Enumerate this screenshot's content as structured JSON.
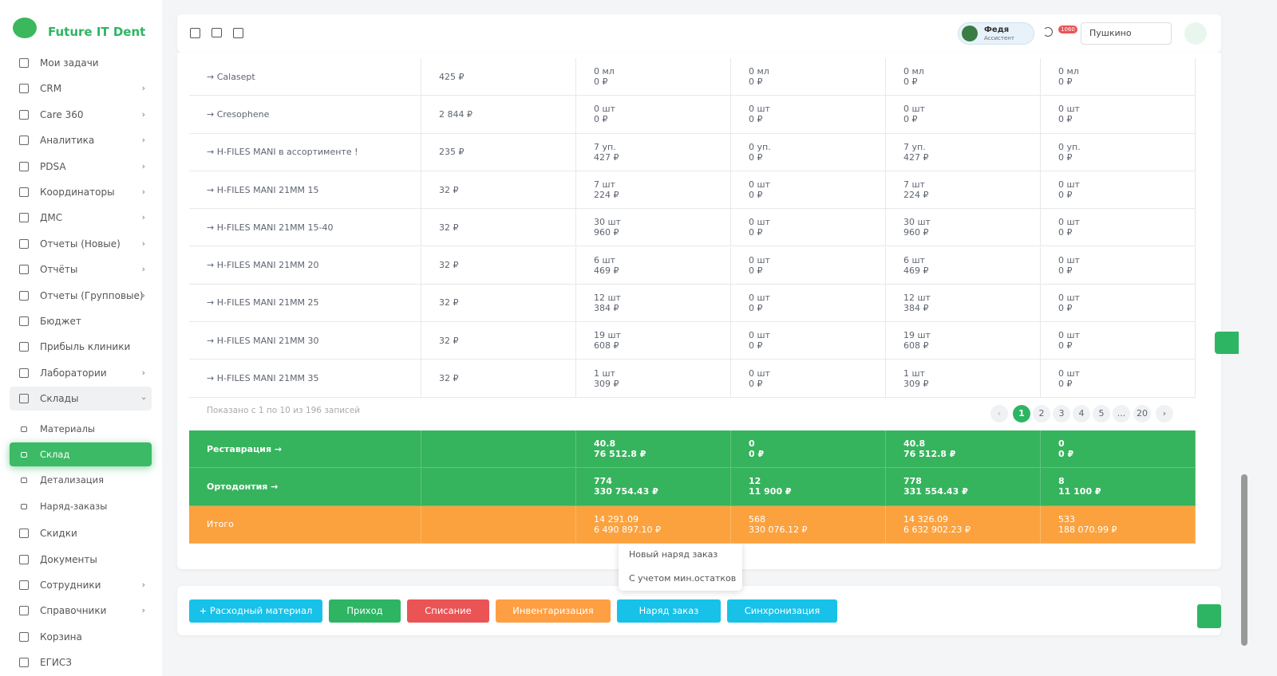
{
  "brand": "Future IT Dent",
  "sidebar": {
    "items": [
      {
        "label": "Мои задачи"
      },
      {
        "label": "CRM",
        "expandable": true
      },
      {
        "label": "Care 360",
        "expandable": true
      },
      {
        "label": "Аналитика",
        "expandable": true
      },
      {
        "label": "PDSA",
        "expandable": true
      },
      {
        "label": "Координаторы",
        "expandable": true
      },
      {
        "label": "ДМС",
        "expandable": true
      },
      {
        "label": "Отчеты (Новые)",
        "expandable": true
      },
      {
        "label": "Отчёты",
        "expandable": true
      },
      {
        "label": "Отчеты (Групповые)",
        "expandable": true
      },
      {
        "label": "Бюджет"
      },
      {
        "label": "Прибыль клиники"
      },
      {
        "label": "Лаборатории",
        "expandable": true
      },
      {
        "label": "Склады",
        "expandable": true,
        "children": [
          {
            "label": "Материалы"
          },
          {
            "label": "Склад",
            "active": true
          },
          {
            "label": "Детализация"
          },
          {
            "label": "Наряд-заказы"
          }
        ]
      },
      {
        "label": "Скидки"
      },
      {
        "label": "Документы"
      },
      {
        "label": "Сотрудники",
        "expandable": true
      },
      {
        "label": "Справочники",
        "expandable": true
      },
      {
        "label": "Корзина"
      },
      {
        "label": "ЕГИСЗ"
      }
    ]
  },
  "header": {
    "assistant_name": "Федя",
    "assistant_role": "Ассистент",
    "notifications": "1060",
    "location": "Пушкино"
  },
  "table": {
    "rows": [
      {
        "name": "→ Calasept",
        "price": "425 ₽",
        "cells": [
          [
            "0 мл",
            "0 ₽"
          ],
          [
            "0 мл",
            "0 ₽"
          ],
          [
            "0 мл",
            "0 ₽"
          ],
          [
            "0 мл",
            "0 ₽"
          ]
        ]
      },
      {
        "name": "→ Cresophene",
        "price": "2 844 ₽",
        "cells": [
          [
            "0 шт",
            "0 ₽"
          ],
          [
            "0 шт",
            "0 ₽"
          ],
          [
            "0 шт",
            "0 ₽"
          ],
          [
            "0 шт",
            "0 ₽"
          ]
        ]
      },
      {
        "name": "→ H-FILES MANI в ассортименте !",
        "price": "235 ₽",
        "cells": [
          [
            "7 уп.",
            "427 ₽"
          ],
          [
            "0 уп.",
            "0 ₽"
          ],
          [
            "7 уп.",
            "427 ₽"
          ],
          [
            "0 уп.",
            "0 ₽"
          ]
        ]
      },
      {
        "name": "→ H-FILES MANI 21MM 15",
        "price": "32 ₽",
        "cells": [
          [
            "7 шт",
            "224 ₽"
          ],
          [
            "0 шт",
            "0 ₽"
          ],
          [
            "7 шт",
            "224 ₽"
          ],
          [
            "0 шт",
            "0 ₽"
          ]
        ]
      },
      {
        "name": "→ H-FILES MANI 21MM 15-40",
        "price": "32 ₽",
        "cells": [
          [
            "30 шт",
            "960 ₽"
          ],
          [
            "0 шт",
            "0 ₽"
          ],
          [
            "30 шт",
            "960 ₽"
          ],
          [
            "0 шт",
            "0 ₽"
          ]
        ]
      },
      {
        "name": "→ H-FILES MANI 21MM 20",
        "price": "32 ₽",
        "cells": [
          [
            "6 шт",
            "469 ₽"
          ],
          [
            "0 шт",
            "0 ₽"
          ],
          [
            "6 шт",
            "469 ₽"
          ],
          [
            "0 шт",
            "0 ₽"
          ]
        ]
      },
      {
        "name": "→ H-FILES MANI 21MM 25",
        "price": "32 ₽",
        "cells": [
          [
            "12 шт",
            "384 ₽"
          ],
          [
            "0 шт",
            "0 ₽"
          ],
          [
            "12 шт",
            "384 ₽"
          ],
          [
            "0 шт",
            "0 ₽"
          ]
        ]
      },
      {
        "name": "→ H-FILES MANI 21MM 30",
        "price": "32 ₽",
        "cells": [
          [
            "19 шт",
            "608 ₽"
          ],
          [
            "0 шт",
            "0 ₽"
          ],
          [
            "19 шт",
            "608 ₽"
          ],
          [
            "0 шт",
            "0 ₽"
          ]
        ]
      },
      {
        "name": "→ H-FILES MANI 21MM 35",
        "price": "32 ₽",
        "cells": [
          [
            "1 шт",
            "309 ₽"
          ],
          [
            "0 шт",
            "0 ₽"
          ],
          [
            "1 шт",
            "309 ₽"
          ],
          [
            "0 шт",
            "0 ₽"
          ]
        ]
      }
    ],
    "info": "Показано с 1 по 10 из 196 записей",
    "pages": [
      "1",
      "2",
      "3",
      "4",
      "5",
      "...",
      "20"
    ],
    "summary": [
      {
        "name": "Реставрация →",
        "kind": "group",
        "cells": [
          [
            "40.8",
            "76 512.8 ₽"
          ],
          [
            "0",
            "0 ₽"
          ],
          [
            "40.8",
            "76 512.8 ₽"
          ],
          [
            "0",
            "0 ₽"
          ]
        ]
      },
      {
        "name": "Ортодонтия →",
        "kind": "group",
        "cells": [
          [
            "774",
            "330 754.43 ₽"
          ],
          [
            "12",
            "11 900 ₽"
          ],
          [
            "778",
            "331 554.43 ₽"
          ],
          [
            "8",
            "11 100 ₽"
          ]
        ]
      },
      {
        "name": "Итого",
        "kind": "total",
        "cells": [
          [
            "14 291.09",
            "6 490 897.10 ₽"
          ],
          [
            "568",
            "330 076.12 ₽"
          ],
          [
            "14 326.09",
            "6 632 902.23 ₽"
          ],
          [
            "533",
            "188 070.99 ₽"
          ]
        ]
      }
    ]
  },
  "dropdown": [
    "Новый наряд заказ",
    "С учетом мин.остатков"
  ],
  "buttons": [
    {
      "label": "+ Расходный материал",
      "color": "#17c1e8"
    },
    {
      "label": "Приход",
      "color": "#2db563"
    },
    {
      "label": "Списание",
      "color": "#ea5455"
    },
    {
      "label": "Инвентаризация",
      "color": "#ff9f43"
    },
    {
      "label": "Наряд заказ",
      "color": "#17c1e8"
    },
    {
      "label": "Синхронизация",
      "color": "#17c1e8"
    }
  ]
}
